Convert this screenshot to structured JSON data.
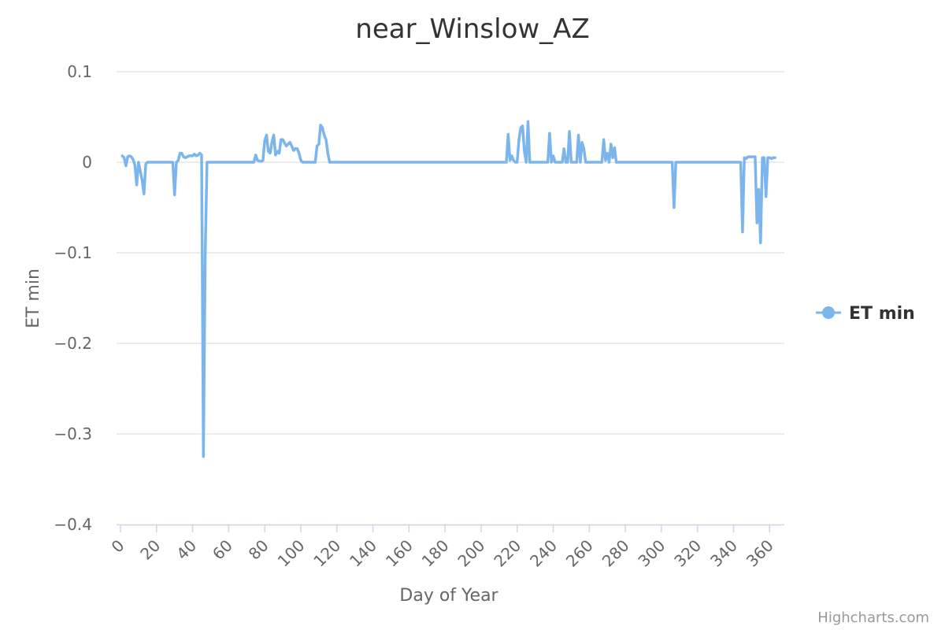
{
  "chart_data": {
    "type": "line",
    "title": "near_Winslow_AZ",
    "xlabel": "Day of Year",
    "ylabel": "ET min",
    "xlim": [
      0,
      366
    ],
    "ylim": [
      -0.4,
      0.1
    ],
    "x_ticks": [
      0,
      20,
      40,
      60,
      80,
      100,
      120,
      140,
      160,
      180,
      200,
      220,
      240,
      260,
      280,
      300,
      320,
      340,
      360
    ],
    "y_ticks": [
      0.1,
      0,
      -0.1,
      -0.2,
      -0.3,
      -0.4
    ],
    "y_tick_labels": [
      "0.1",
      "0",
      "−0.1",
      "−0.2",
      "−0.3",
      "−0.4"
    ],
    "legend": {
      "position": "right",
      "entries": [
        "ET min"
      ]
    },
    "series": [
      {
        "name": "ET min",
        "color": "#7cb5ec",
        "points": [
          [
            1,
            0.007
          ],
          [
            2,
            0.005
          ],
          [
            3,
            -0.004
          ],
          [
            4,
            0.006
          ],
          [
            5,
            0.007
          ],
          [
            6,
            0.006
          ],
          [
            7,
            0.003
          ],
          [
            8,
            -0.003
          ],
          [
            9,
            -0.025
          ],
          [
            10,
            0.0
          ],
          [
            11,
            -0.01
          ],
          [
            12,
            -0.02
          ],
          [
            13,
            -0.035
          ],
          [
            14,
            -0.002
          ],
          [
            15,
            0.0
          ],
          [
            29,
            0.0
          ],
          [
            30,
            -0.036
          ],
          [
            31,
            0.0
          ],
          [
            32,
            0.002
          ],
          [
            33,
            0.01
          ],
          [
            34,
            0.01
          ],
          [
            35,
            0.006
          ],
          [
            36,
            0.005
          ],
          [
            38,
            0.007
          ],
          [
            40,
            0.007
          ],
          [
            41,
            0.009
          ],
          [
            42,
            0.007
          ],
          [
            43,
            0.008
          ],
          [
            44,
            0.01
          ],
          [
            45,
            0.008
          ],
          [
            46,
            -0.325
          ],
          [
            47,
            -0.1
          ],
          [
            48,
            0.0
          ],
          [
            74,
            0.0
          ],
          [
            75,
            0.008
          ],
          [
            76,
            0.002
          ],
          [
            78,
            0.001
          ],
          [
            79,
            0.002
          ],
          [
            80,
            0.024
          ],
          [
            81,
            0.03
          ],
          [
            82,
            0.012
          ],
          [
            83,
            0.01
          ],
          [
            84,
            0.022
          ],
          [
            85,
            0.03
          ],
          [
            86,
            0.008
          ],
          [
            87,
            0.012
          ],
          [
            88,
            0.01
          ],
          [
            89,
            0.025
          ],
          [
            90,
            0.025
          ],
          [
            91,
            0.021
          ],
          [
            92,
            0.018
          ],
          [
            93,
            0.02
          ],
          [
            94,
            0.022
          ],
          [
            95,
            0.018
          ],
          [
            96,
            0.013
          ],
          [
            97,
            0.015
          ],
          [
            98,
            0.015
          ],
          [
            99,
            0.01
          ],
          [
            100,
            0.002
          ],
          [
            101,
            0.0
          ],
          [
            108,
            0.0
          ],
          [
            109,
            0.018
          ],
          [
            110,
            0.02
          ],
          [
            111,
            0.041
          ],
          [
            112,
            0.038
          ],
          [
            113,
            0.03
          ],
          [
            114,
            0.025
          ],
          [
            115,
            0.01
          ],
          [
            116,
            0.0
          ],
          [
            214,
            0.0
          ],
          [
            215,
            0.031
          ],
          [
            216,
            0.002
          ],
          [
            217,
            0.007
          ],
          [
            218,
            0.002
          ],
          [
            219,
            0.0
          ],
          [
            220,
            0.0
          ],
          [
            221,
            0.025
          ],
          [
            222,
            0.038
          ],
          [
            223,
            0.04
          ],
          [
            224,
            0.012
          ],
          [
            225,
            0.0
          ],
          [
            226,
            0.045
          ],
          [
            227,
            0.0
          ],
          [
            237,
            0.0
          ],
          [
            238,
            0.032
          ],
          [
            239,
            0.0
          ],
          [
            240,
            0.007
          ],
          [
            241,
            0.0
          ],
          [
            245,
            0.0
          ],
          [
            246,
            0.015
          ],
          [
            247,
            0.0
          ],
          [
            248,
            0.0
          ],
          [
            249,
            0.034
          ],
          [
            250,
            0.0
          ],
          [
            253,
            0.0
          ],
          [
            254,
            0.03
          ],
          [
            255,
            0.0
          ],
          [
            256,
            0.022
          ],
          [
            257,
            0.015
          ],
          [
            258,
            0.0
          ],
          [
            267,
            0.0
          ],
          [
            268,
            0.025
          ],
          [
            269,
            0.002
          ],
          [
            270,
            0.01
          ],
          [
            271,
            0.0
          ],
          [
            272,
            0.02
          ],
          [
            273,
            0.005
          ],
          [
            274,
            0.016
          ],
          [
            275,
            0.0
          ],
          [
            306,
            0.0
          ],
          [
            307,
            -0.05
          ],
          [
            308,
            0.0
          ],
          [
            344,
            0.0
          ],
          [
            345,
            -0.077
          ],
          [
            346,
            0.005
          ],
          [
            347,
            0.004
          ],
          [
            348,
            0.006
          ],
          [
            349,
            0.006
          ],
          [
            350,
            0.006
          ],
          [
            351,
            0.006
          ],
          [
            352,
            0.006
          ],
          [
            353,
            -0.067
          ],
          [
            354,
            -0.03
          ],
          [
            355,
            -0.089
          ],
          [
            356,
            0.005
          ],
          [
            357,
            0.005
          ],
          [
            358,
            -0.038
          ],
          [
            359,
            0.005
          ],
          [
            360,
            0.005
          ],
          [
            361,
            0.004
          ],
          [
            362,
            0.005
          ],
          [
            363,
            0.005
          ]
        ]
      }
    ]
  },
  "credits": "Highcharts.com"
}
